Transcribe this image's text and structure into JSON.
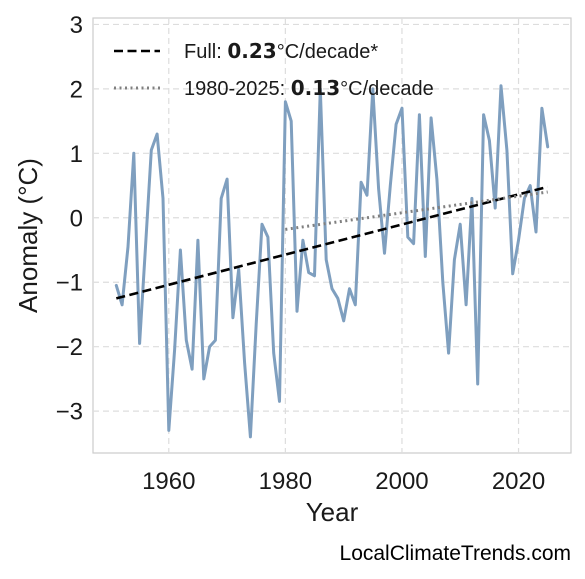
{
  "chart_data": {
    "type": "line",
    "xlabel": "Year",
    "ylabel": "Anomaly (°C)",
    "xlim": [
      1947,
      2029
    ],
    "ylim": [
      -3.65,
      3.1
    ],
    "x_ticks": [
      1960,
      1980,
      2000,
      2020
    ],
    "y_ticks": [
      3,
      2,
      1,
      0,
      -1,
      -2,
      -3
    ],
    "y_tick_labels": [
      "3",
      "2",
      "1",
      "0",
      "−1",
      "−2",
      "−3"
    ],
    "grid": true,
    "legend_placement": "top-left",
    "series": [
      {
        "color": "#7f9fbf",
        "x": [
          1951,
          1952,
          1953,
          1954,
          1955,
          1956,
          1957,
          1958,
          1959,
          1960,
          1961,
          1962,
          1963,
          1964,
          1965,
          1966,
          1967,
          1968,
          1969,
          1970,
          1971,
          1972,
          1973,
          1974,
          1975,
          1976,
          1977,
          1978,
          1979,
          1980,
          1981,
          1982,
          1983,
          1984,
          1985,
          1986,
          1987,
          1988,
          1989,
          1990,
          1991,
          1992,
          1993,
          1994,
          1995,
          1996,
          1997,
          1998,
          1999,
          2000,
          2001,
          2002,
          2003,
          2004,
          2005,
          2006,
          2007,
          2008,
          2009,
          2010,
          2011,
          2012,
          2013,
          2014,
          2015,
          2016,
          2017,
          2018,
          2019,
          2020,
          2021,
          2022,
          2023,
          2024,
          2025
        ],
        "values": [
          -1.05,
          -1.35,
          -0.45,
          1.0,
          -1.95,
          -0.45,
          1.05,
          1.3,
          0.3,
          -3.3,
          -2.05,
          -0.5,
          -1.9,
          -2.35,
          -0.35,
          -2.5,
          -2.0,
          -1.9,
          0.3,
          0.6,
          -1.55,
          -0.8,
          -2.25,
          -3.4,
          -1.65,
          -0.1,
          -0.3,
          -2.1,
          -2.85,
          1.8,
          1.5,
          -1.45,
          -0.35,
          -0.85,
          -0.9,
          2.0,
          -0.65,
          -1.1,
          -1.25,
          -1.6,
          -1.1,
          -1.35,
          0.55,
          0.35,
          2.0,
          0.45,
          -0.55,
          0.5,
          1.45,
          1.7,
          -0.3,
          -0.4,
          1.6,
          -0.6,
          1.55,
          0.6,
          -1.0,
          -2.1,
          -0.65,
          -0.1,
          -1.35,
          0.3,
          -2.58,
          1.6,
          1.2,
          0.15,
          2.05,
          1.05,
          -0.87,
          -0.35,
          0.3,
          0.5,
          -0.22,
          1.7,
          1.1
        ]
      }
    ],
    "trends": [
      {
        "label_prefix": "Full: ",
        "label_value": "0.23",
        "label_suffix": "°C/decade*",
        "style": "dashed",
        "color": "#000000",
        "x": [
          1951,
          2025
        ],
        "y": [
          -1.25,
          0.48
        ]
      },
      {
        "label_prefix": "1980-2025: ",
        "label_value": "0.13",
        "label_suffix": "°C/decade",
        "style": "dotted",
        "color": "#808080",
        "x": [
          1980,
          2025
        ],
        "y": [
          -0.18,
          0.4
        ]
      }
    ]
  },
  "source": "LocalClimateTrends.com"
}
